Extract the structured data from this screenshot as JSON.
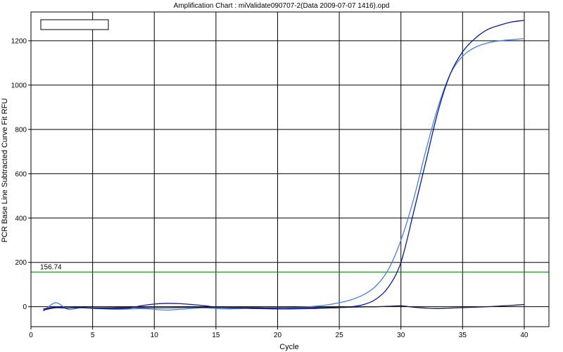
{
  "chart_data": {
    "type": "line",
    "title": "Amplification Chart : miValidate090707-2(Data 2009-07-07 1416).opd",
    "xlabel": "Cycle",
    "ylabel": "PCR Base Line Subtracted Curve Fit RFU",
    "xlim": [
      0,
      42
    ],
    "ylim": [
      -90,
      1330
    ],
    "x_ticks": [
      0,
      5,
      10,
      15,
      20,
      25,
      30,
      35,
      40
    ],
    "y_ticks": [
      0,
      200,
      400,
      600,
      800,
      1000,
      1200
    ],
    "grid": true,
    "threshold": {
      "label": "156.74",
      "value": 156.74,
      "color": "#008000"
    },
    "legend": {
      "placement": "top-left",
      "entries": []
    },
    "series": [
      {
        "color": "#4a7fe0",
        "x": [
          1,
          2,
          3,
          4,
          5,
          6,
          7,
          8,
          9,
          10,
          11,
          12,
          13,
          14,
          15,
          16,
          17,
          18,
          19,
          20,
          21,
          22,
          23,
          24,
          25,
          26,
          27,
          28,
          29,
          30,
          31,
          32,
          33,
          34,
          35,
          36,
          37,
          38,
          39,
          40
        ],
        "values": [
          -20,
          18,
          -12,
          -5,
          -8,
          -10,
          -12,
          -10,
          -8,
          -12,
          -15,
          -12,
          -8,
          -5,
          -8,
          -10,
          -8,
          -6,
          -6,
          -5,
          -4,
          -2,
          2,
          8,
          18,
          32,
          55,
          95,
          170,
          300,
          480,
          700,
          900,
          1050,
          1130,
          1170,
          1190,
          1200,
          1205,
          1210
        ]
      },
      {
        "color": "#0a1a90",
        "x": [
          1,
          2,
          3,
          4,
          5,
          6,
          7,
          8,
          9,
          10,
          11,
          12,
          13,
          14,
          15,
          16,
          17,
          18,
          19,
          20,
          21,
          22,
          23,
          24,
          25,
          26,
          27,
          28,
          29,
          30,
          31,
          32,
          33,
          34,
          35,
          36,
          37,
          38,
          39,
          40
        ],
        "values": [
          -10,
          -2,
          -5,
          -2,
          -6,
          -8,
          -8,
          -6,
          5,
          12,
          15,
          14,
          10,
          5,
          -2,
          -5,
          -6,
          -8,
          -9,
          -10,
          -10,
          -9,
          -8,
          -6,
          -4,
          0,
          10,
          35,
          90,
          200,
          420,
          650,
          880,
          1050,
          1150,
          1210,
          1250,
          1270,
          1285,
          1292
        ]
      },
      {
        "color": "#1a1a40",
        "x": [
          1,
          2,
          3,
          4,
          5,
          6,
          7,
          8,
          9,
          10,
          11,
          12,
          13,
          14,
          15,
          16,
          17,
          18,
          19,
          20,
          21,
          22,
          23,
          24,
          25,
          26,
          27,
          28,
          29,
          30,
          31,
          32,
          33,
          34,
          35,
          36,
          37,
          38,
          39,
          40
        ],
        "values": [
          -15,
          -5,
          -6,
          -4,
          -5,
          -5,
          -4,
          -3,
          -4,
          -5,
          -5,
          -4,
          -3,
          -3,
          -3,
          -4,
          -4,
          -4,
          -5,
          -5,
          -5,
          -4,
          -4,
          -3,
          -3,
          -2,
          -1,
          0,
          2,
          4,
          -2,
          -6,
          -8,
          -6,
          -4,
          -2,
          0,
          3,
          6,
          10
        ]
      }
    ]
  }
}
